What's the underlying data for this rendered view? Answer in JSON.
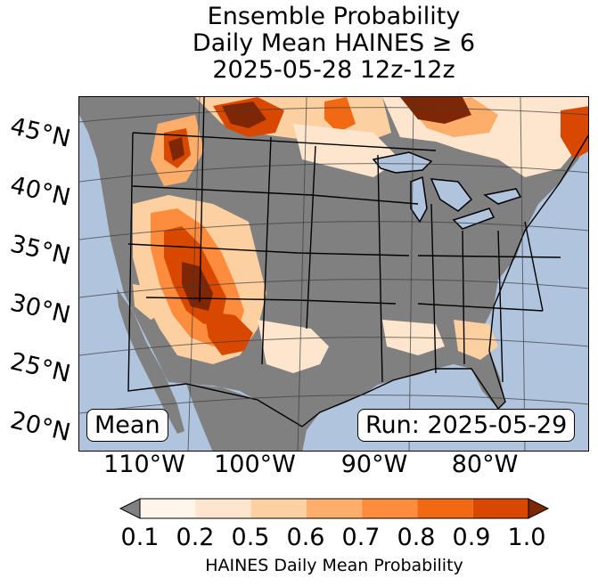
{
  "title": {
    "line1": "Ensemble Probability",
    "line2": "Daily Mean HAINES ≥ 6",
    "line3": "2025-05-28 12z-12z"
  },
  "lat_labels": [
    "45°N",
    "40°N",
    "35°N",
    "30°N",
    "25°N",
    "20°N"
  ],
  "lon_labels": [
    "110°W",
    "100°W",
    "90°W",
    "80°W"
  ],
  "stat_box": "Mean",
  "run_box": "Run: 2025-05-29",
  "colorbar": {
    "label": "HAINES Daily Mean Probability",
    "ticks": [
      "0.1",
      "0.2",
      "0.5",
      "0.6",
      "0.7",
      "0.8",
      "0.9",
      "1.0"
    ],
    "under_color": "#808080",
    "over_color": "#7f2704",
    "colors": [
      "#fff5eb",
      "#fee6ce",
      "#fdd0a2",
      "#fdae6b",
      "#fd8d3c",
      "#f16913",
      "#d94801"
    ]
  },
  "map_colors": {
    "ocean": "#b0c4de",
    "below_threshold": "#808080",
    "lakes": "#b0c4de"
  }
}
